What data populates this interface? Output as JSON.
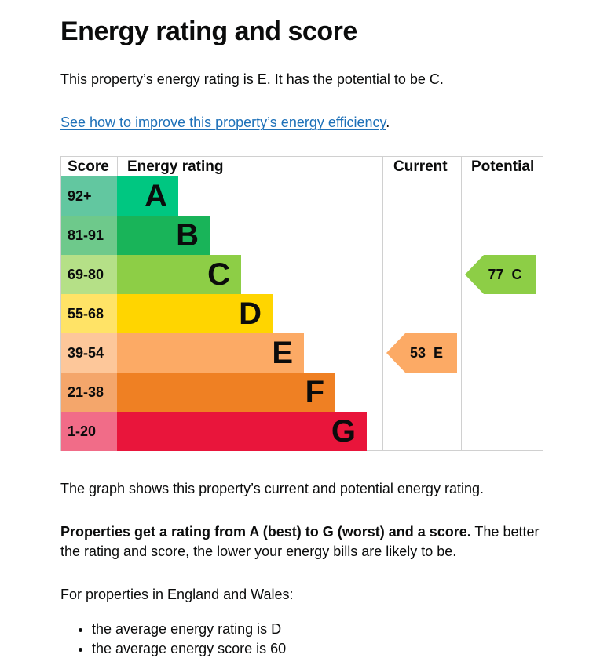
{
  "title": "Energy rating and score",
  "lead": "This property’s energy rating is E. It has the potential to be C.",
  "improve_link": {
    "text": "See how to improve this property’s energy efficiency",
    "suffix": "."
  },
  "table_headers": {
    "score": "Score",
    "rating": "Energy rating",
    "current": "Current",
    "potential": "Potential"
  },
  "graph_note": "The graph shows this property’s current and potential energy rating.",
  "explain": {
    "bold": "Properties get a rating from A (best) to G (worst) and a score.",
    "rest": " The better the rating and score, the lower your energy bills are likely to be."
  },
  "england_wales": "For properties in England and Wales:",
  "averages": [
    "the average energy rating is D",
    "the average energy score is 60"
  ],
  "chart_data": {
    "type": "bar",
    "title": "Energy rating and score",
    "categories": [
      "A",
      "B",
      "C",
      "D",
      "E",
      "F",
      "G"
    ],
    "score_ranges": [
      "92+",
      "81-91",
      "69-80",
      "55-68",
      "39-54",
      "21-38",
      "1-20"
    ],
    "bar_colors": [
      "#00c781",
      "#19b459",
      "#8dce46",
      "#ffd500",
      "#fcaa65",
      "#ef8023",
      "#e9153b"
    ],
    "score_cell_colors": [
      "#62c7a0",
      "#6ec98b",
      "#b5e087",
      "#ffe366",
      "#fdc79a",
      "#f4a66b",
      "#f16c88"
    ],
    "relative_bar_widths": [
      1,
      2,
      3,
      4,
      5,
      6,
      7
    ],
    "columns": [
      "Score",
      "Energy rating",
      "Current",
      "Potential"
    ],
    "current": {
      "score": 53,
      "rating": "E",
      "label": "53  E",
      "color": "#fcaa65"
    },
    "potential": {
      "score": 77,
      "rating": "C",
      "label": "77  C",
      "color": "#8dce46"
    },
    "legend": "none",
    "grid": false
  }
}
